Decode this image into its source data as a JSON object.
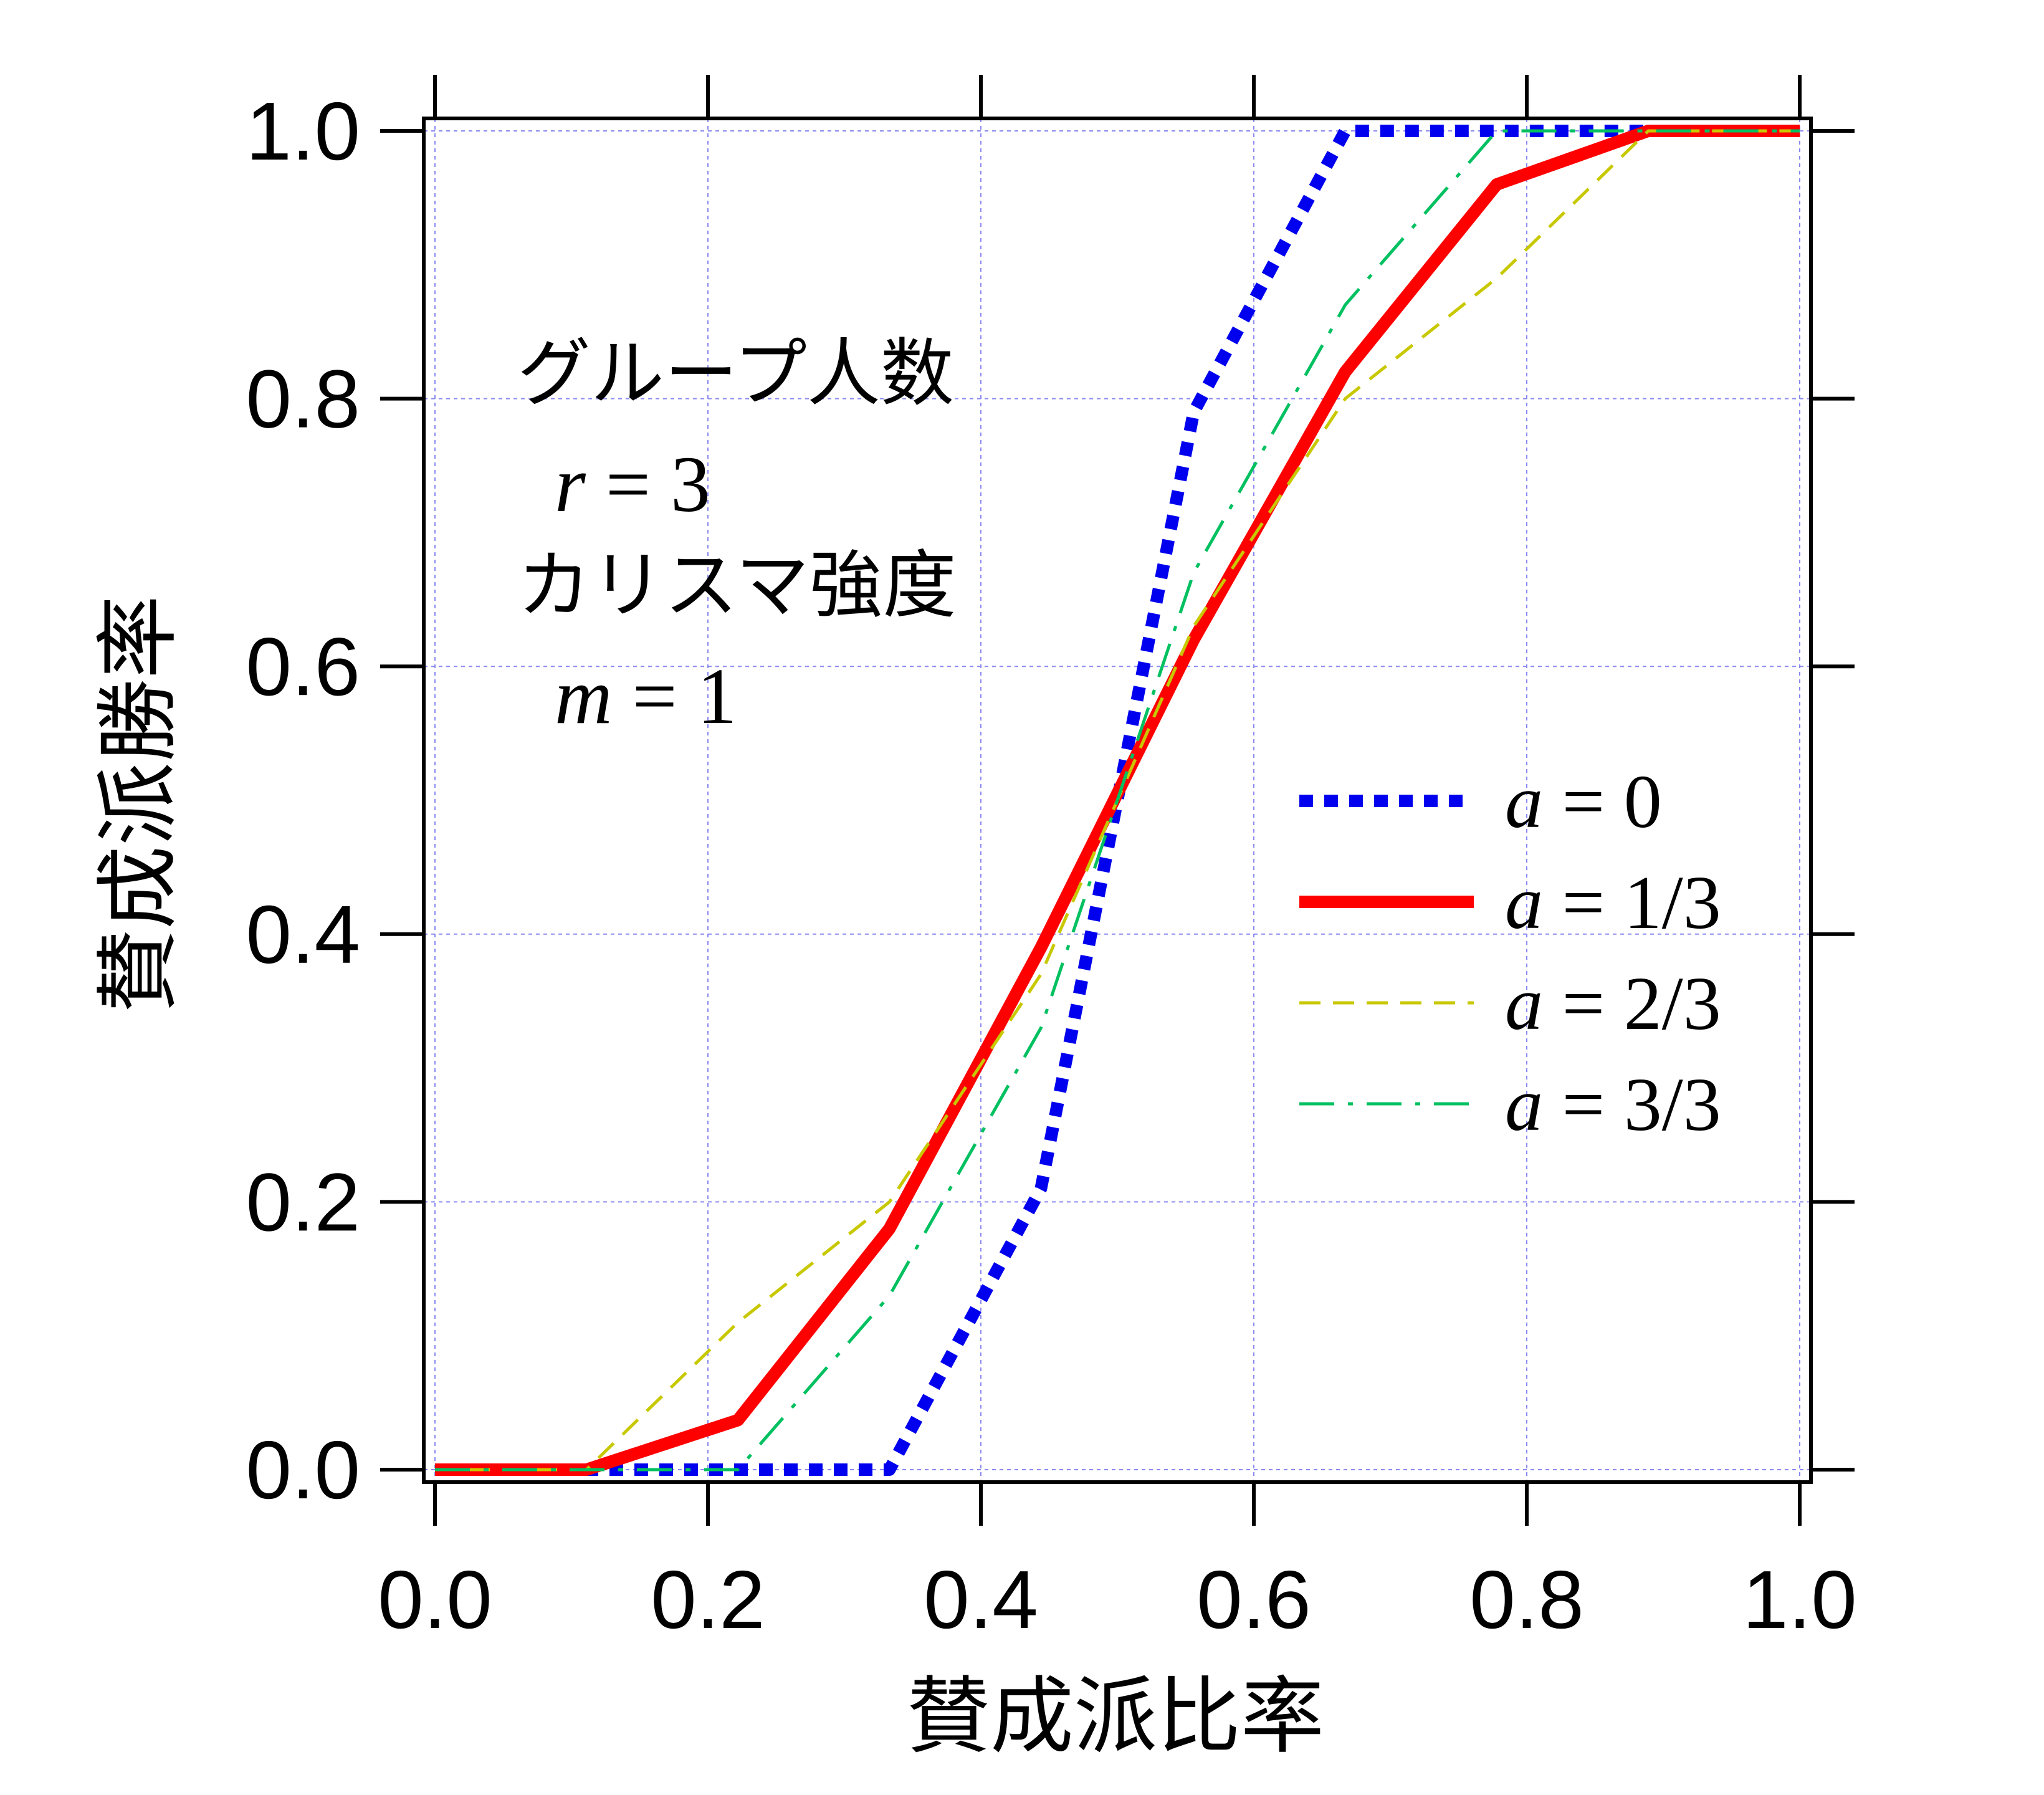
{
  "chart_data": {
    "type": "line",
    "xlabel": "賛成派比率",
    "ylabel": "賛成派勝率",
    "xlim": [
      0,
      1
    ],
    "ylim": [
      0,
      1
    ],
    "xticks": [
      "0.0",
      "0.2",
      "0.4",
      "0.6",
      "0.8",
      "1.0"
    ],
    "yticks": [
      "0.0",
      "0.2",
      "0.4",
      "0.6",
      "0.8",
      "1.0"
    ],
    "grid": true,
    "legend_position": "center-right",
    "annotation": {
      "line1": "グループ人数",
      "line2_var": "r",
      "line2_rest": " = 3",
      "line3": "カリスマ強度",
      "line4_var": "m",
      "line4_rest": " = 1"
    },
    "series": [
      {
        "legend_var": "a",
        "legend_rest": " = 0",
        "color": "#0000ee",
        "style": "dotted",
        "x": [
          0,
          0.111,
          0.222,
          0.333,
          0.444,
          0.556,
          0.667,
          0.778,
          0.889,
          1.0
        ],
        "y": [
          0,
          0,
          0,
          0,
          0.21,
          0.79,
          1.0,
          1.0,
          1.0,
          1.0
        ]
      },
      {
        "legend_var": "a",
        "legend_rest": " = 1/3",
        "color": "#ff0000",
        "style": "solid",
        "x": [
          0,
          0.111,
          0.222,
          0.333,
          0.444,
          0.556,
          0.667,
          0.778,
          0.889,
          1.0
        ],
        "y": [
          0,
          0,
          0.037,
          0.18,
          0.39,
          0.62,
          0.82,
          0.96,
          1.0,
          1.0
        ]
      },
      {
        "legend_var": "a",
        "legend_rest": " = 2/3",
        "color": "#c8c800",
        "style": "dashed",
        "x": [
          0,
          0.111,
          0.222,
          0.333,
          0.444,
          0.556,
          0.667,
          0.778,
          0.889,
          1.0
        ],
        "y": [
          0,
          0,
          0.11,
          0.2,
          0.37,
          0.63,
          0.8,
          0.89,
          1.0,
          1.0
        ]
      },
      {
        "legend_var": "a",
        "legend_rest": " = 3/3",
        "color": "#00c060",
        "style": "dashdot",
        "x": [
          0,
          0.111,
          0.222,
          0.333,
          0.444,
          0.556,
          0.667,
          0.778,
          0.889,
          1.0
        ],
        "y": [
          0,
          0,
          0,
          0.13,
          0.33,
          0.67,
          0.87,
          1.0,
          1.0,
          1.0
        ]
      }
    ]
  }
}
